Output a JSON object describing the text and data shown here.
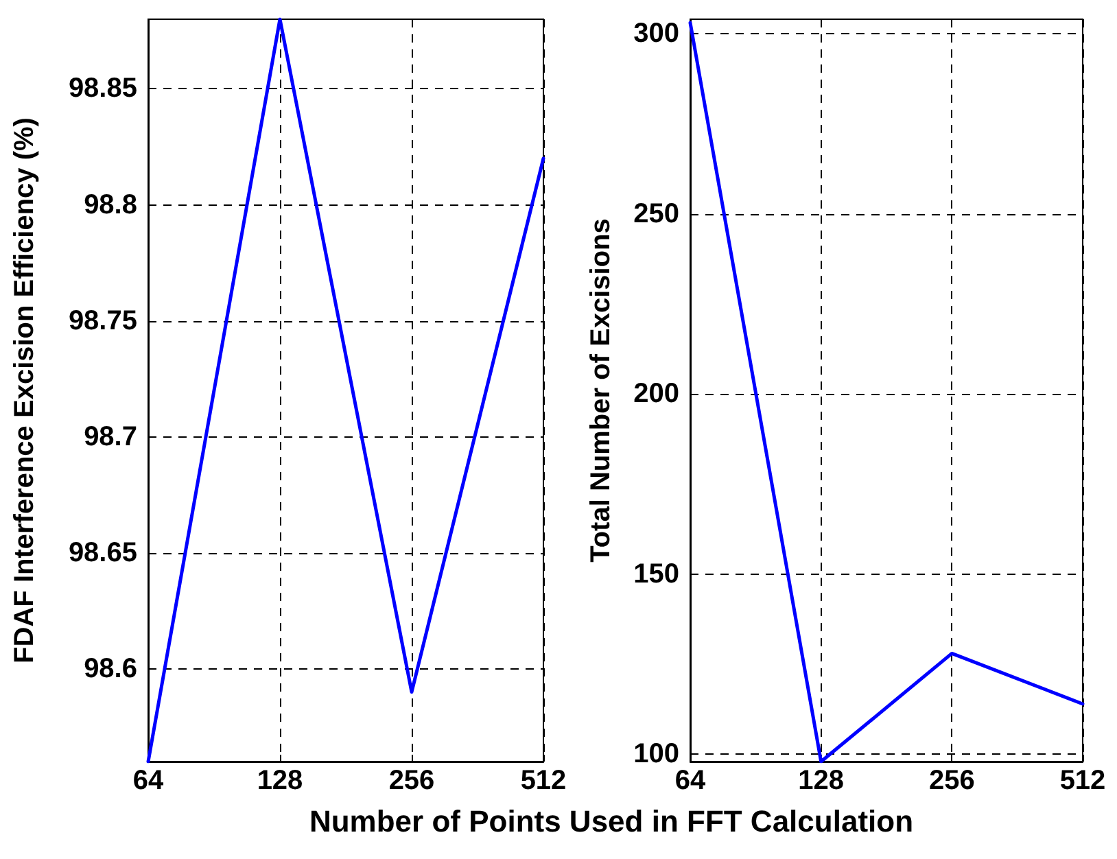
{
  "chart_data": [
    {
      "type": "line",
      "xlabel": "Number of Points Used in FFT Calculation",
      "ylabel": "FDAF Interference Excision Efficiency (%)",
      "categories": [
        "64",
        "128",
        "256",
        "512"
      ],
      "values": [
        98.56,
        98.88,
        98.59,
        98.82
      ],
      "color": "#0000ff",
      "ylim": [
        98.56,
        98.88
      ],
      "yticks": [
        98.6,
        98.65,
        98.7,
        98.75,
        98.8,
        98.85
      ],
      "grid": true,
      "marker": "none",
      "line_style": "solid"
    },
    {
      "type": "line",
      "ylabel": "Total Number of Excisions",
      "categories": [
        "64",
        "128",
        "256",
        "512"
      ],
      "values": [
        303,
        98,
        128,
        114
      ],
      "color": "#0000ff",
      "ylim": [
        98,
        304
      ],
      "yticks": [
        100,
        150,
        200,
        250,
        300
      ],
      "grid": true,
      "marker": "none",
      "line_style": "solid"
    }
  ]
}
